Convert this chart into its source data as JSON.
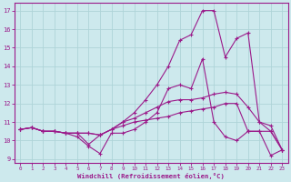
{
  "xlabel": "Windchill (Refroidissement éolien,°C)",
  "bg_color": "#cde9ed",
  "line_color": "#9b1a8a",
  "grid_color": "#aed4d8",
  "series": [
    [
      10.6,
      10.7,
      10.5,
      10.5,
      10.4,
      10.2,
      9.7,
      9.3,
      10.4,
      10.4,
      10.6,
      11.0,
      11.5,
      12.8,
      13.0,
      12.8,
      14.4,
      11.0,
      10.2,
      10.0,
      10.5,
      10.5,
      9.2,
      9.5
    ],
    [
      10.6,
      10.7,
      10.5,
      10.5,
      10.4,
      10.4,
      9.8,
      10.3,
      10.6,
      11.0,
      11.5,
      12.2,
      13.0,
      14.0,
      15.4,
      15.7,
      17.0,
      17.0,
      14.5,
      15.5,
      15.8,
      11.0,
      10.5,
      9.5
    ],
    [
      10.6,
      10.7,
      10.5,
      10.5,
      10.4,
      10.4,
      10.4,
      10.3,
      10.6,
      11.0,
      11.2,
      11.5,
      11.8,
      12.1,
      12.2,
      12.2,
      12.3,
      12.5,
      12.6,
      12.5,
      11.8,
      11.0,
      10.8,
      9.5
    ],
    [
      10.6,
      10.7,
      10.5,
      10.5,
      10.4,
      10.4,
      10.4,
      10.3,
      10.6,
      10.8,
      11.0,
      11.1,
      11.2,
      11.3,
      11.5,
      11.6,
      11.7,
      11.8,
      12.0,
      12.0,
      10.5,
      10.5,
      10.5,
      9.5
    ]
  ],
  "xlim": [
    -0.5,
    23.5
  ],
  "ylim": [
    8.8,
    17.4
  ],
  "yticks": [
    9,
    10,
    11,
    12,
    13,
    14,
    15,
    16,
    17
  ],
  "xticks": [
    0,
    1,
    2,
    3,
    4,
    5,
    6,
    7,
    8,
    9,
    10,
    11,
    12,
    13,
    14,
    15,
    16,
    17,
    18,
    19,
    20,
    21,
    22,
    23
  ]
}
